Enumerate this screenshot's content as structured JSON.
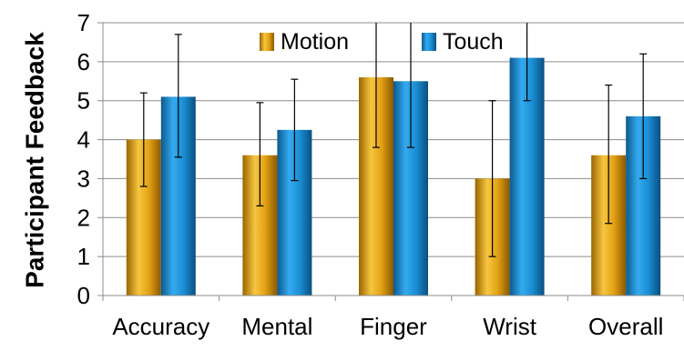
{
  "chart_data": {
    "type": "bar",
    "title": "",
    "xlabel": "",
    "ylabel": "Participant Feedback",
    "ylim": [
      0,
      7
    ],
    "yticks": [
      0,
      1,
      2,
      3,
      4,
      5,
      6,
      7
    ],
    "grid": true,
    "legend_position": "top-center",
    "categories": [
      "Accuracy",
      "Mental",
      "Finger",
      "Wrist",
      "Overall"
    ],
    "series": [
      {
        "name": "Motion",
        "color": "#e1a010",
        "values": [
          4.0,
          3.6,
          5.6,
          3.0,
          3.6
        ],
        "err_low": [
          2.8,
          2.3,
          3.8,
          1.0,
          1.85
        ],
        "err_high": [
          5.2,
          4.95,
          7.4,
          5.0,
          5.4
        ]
      },
      {
        "name": "Touch",
        "color": "#1c8fd0",
        "values": [
          5.1,
          4.25,
          5.5,
          6.1,
          4.6
        ],
        "err_low": [
          3.55,
          2.95,
          3.8,
          5.0,
          3.0
        ],
        "err_high": [
          6.7,
          5.55,
          7.2,
          7.2,
          6.2
        ]
      }
    ]
  }
}
